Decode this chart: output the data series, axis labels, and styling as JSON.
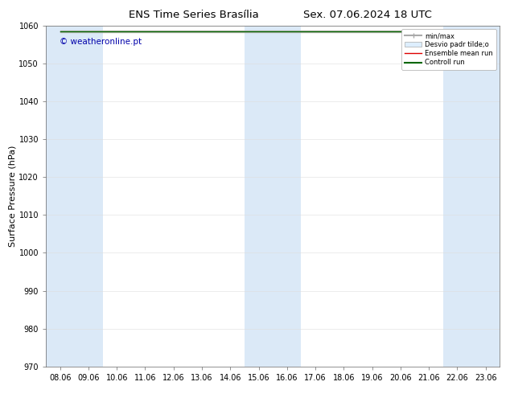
{
  "title": "ENS Time Series Brasília",
  "title2": "Sex. 07.06.2024 18 UTC",
  "ylabel": "Surface Pressure (hPa)",
  "ylim": [
    970,
    1060
  ],
  "yticks": [
    970,
    980,
    990,
    1000,
    1010,
    1020,
    1030,
    1040,
    1050,
    1060
  ],
  "xtick_labels": [
    "08.06",
    "09.06",
    "10.06",
    "11.06",
    "12.06",
    "13.06",
    "14.06",
    "15.06",
    "16.06",
    "17.06",
    "18.06",
    "19.06",
    "20.06",
    "21.06",
    "22.06",
    "23.06"
  ],
  "band_color": "#dbe9f7",
  "background_color": "#ffffff",
  "watermark": "© weatheronline.pt",
  "watermark_color": "#0000aa",
  "legend_items": [
    {
      "label": "min/max",
      "color": "#aaaaaa",
      "lw": 1.5
    },
    {
      "label": "Desvio padr tilde;o",
      "color": "#cccccc",
      "lw": 6
    },
    {
      "label": "Ensemble mean run",
      "color": "#dd0000",
      "lw": 1.0
    },
    {
      "label": "Controll run",
      "color": "#006600",
      "lw": 1.5
    }
  ],
  "shaded_x_indices": [
    0,
    1,
    7,
    8,
    14,
    15
  ],
  "title_fontsize": 9.5,
  "tick_fontsize": 7,
  "ylabel_fontsize": 8
}
